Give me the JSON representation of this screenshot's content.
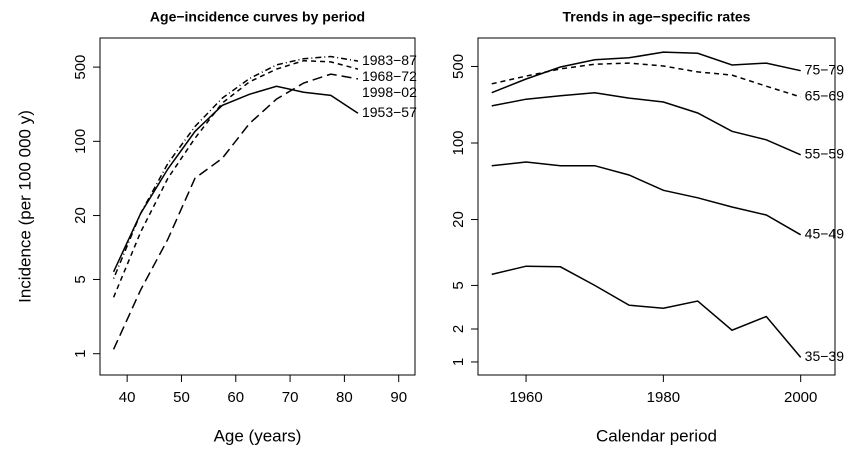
{
  "chart_data": [
    {
      "type": "line",
      "title": "Age−incidence curves by period",
      "xlabel": "Age (years)",
      "ylabel": "Incidence (per 100 000 y)",
      "x": [
        37.5,
        42.5,
        47.5,
        52.5,
        57.5,
        62.5,
        67.5,
        72.5,
        77.5,
        82.5
      ],
      "log_y": true,
      "xlim": [
        35,
        93
      ],
      "ylim": [
        0.63,
        940
      ],
      "xticks": [
        40,
        50,
        60,
        70,
        80,
        90
      ],
      "yticks": [
        1,
        5,
        20,
        100,
        500
      ],
      "series": [
        {
          "name": "1953−57",
          "color": "#000000",
          "linestyle": "solid",
          "values": [
            5.9,
            21,
            55,
            124,
            218,
            277,
            330,
            290,
            271,
            184
          ]
        },
        {
          "name": "1968−72",
          "color": "#000000",
          "linestyle": "dashed",
          "values": [
            3.4,
            14,
            45,
            107,
            229,
            363,
            479,
            575,
            560,
            479
          ]
        },
        {
          "name": "1983−87",
          "color": "#000000",
          "linestyle": "dashdot",
          "values": [
            5.1,
            21,
            62,
            138,
            255,
            390,
            525,
            600,
            630,
            570
          ]
        },
        {
          "name": "1998−02",
          "color": "#000000",
          "linestyle": "longdash",
          "values": [
            1.1,
            4,
            12,
            45,
            69,
            147,
            250,
            354,
            430,
            387
          ]
        }
      ]
    },
    {
      "type": "line",
      "title": "Trends in age−specific rates",
      "xlabel": "Calendar period",
      "x": [
        1955,
        1960,
        1965,
        1970,
        1975,
        1980,
        1985,
        1990,
        1995,
        2000
      ],
      "log_y": true,
      "xlim": [
        1953,
        2005
      ],
      "ylim": [
        0.76,
        910
      ],
      "xticks": [
        1960,
        1980,
        2000
      ],
      "yticks": [
        1,
        2,
        5,
        20,
        100,
        500
      ],
      "series": [
        {
          "name": "35−39",
          "color": "#000000",
          "linestyle": "solid",
          "values": [
            6.3,
            7.5,
            7.4,
            5.0,
            3.3,
            3.1,
            3.6,
            1.95,
            2.6,
            1.1
          ]
        },
        {
          "name": "45−49",
          "color": "#000000",
          "linestyle": "solid",
          "values": [
            62,
            67,
            62,
            62,
            51,
            37,
            31.6,
            26,
            22,
            14.5
          ]
        },
        {
          "name": "55−59",
          "color": "#000000",
          "linestyle": "solid",
          "values": [
            218,
            251,
            270,
            288,
            257,
            237,
            188,
            128,
            107,
            78
          ]
        },
        {
          "name": "65−69",
          "color": "#000000",
          "linestyle": "dashed",
          "values": [
            347,
            408,
            475,
            525,
            537,
            505,
            446,
            417,
            330,
            263
          ]
        },
        {
          "name": "75−79",
          "color": "#000000",
          "linestyle": "solid",
          "values": [
            288,
            384,
            495,
            575,
            600,
            676,
            660,
            516,
            537,
            457
          ]
        }
      ]
    }
  ]
}
